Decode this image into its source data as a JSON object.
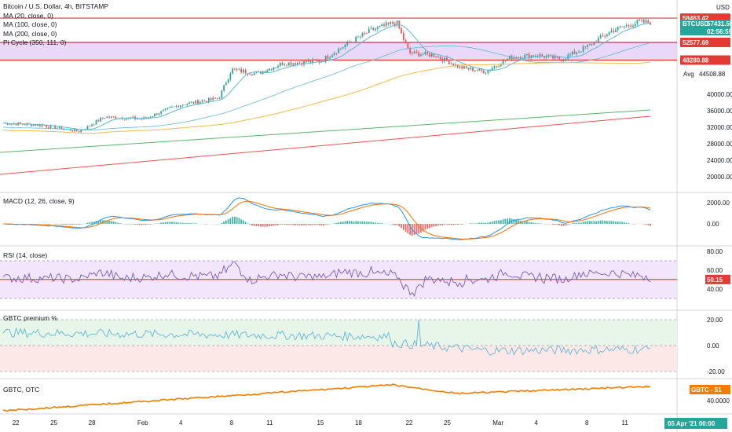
{
  "header": {
    "title": "Bitcoin / U.S. Dollar, 4h, BITSTAMP",
    "currency": "USD",
    "indicators": [
      "MA (20, close, 0)",
      "MA (100, close, 0)",
      "MA (200, close, 0)",
      "Pi Cycle (350, 111, 0)"
    ]
  },
  "price_pane": {
    "ticker_label": "BTCUSD",
    "last_price": "57431.59",
    "countdown": "02:56:59",
    "upper_level": "58463.42",
    "pi_upper": "52577.69",
    "lower_level": "48280.88",
    "avg_label": "Avg",
    "avg_value": "44508.88",
    "ticks": [
      "40000.00",
      "36000.00",
      "32000.00",
      "28000.00",
      "24000.00",
      "20000.00"
    ],
    "colors": {
      "up": "#26a69a",
      "down": "#ef5350",
      "ma20": "#5fb8d9",
      "ma100": "#f7b94a",
      "ma200": "#58b768",
      "pi_band": "#e0c8f5",
      "level": "#e53935",
      "pi_line": "#ef5350"
    }
  },
  "macd_pane": {
    "title": "MACD (12, 26, close, 9)",
    "ticks": [
      "2000.00",
      "0.00"
    ]
  },
  "rsi_pane": {
    "title": "RSI (14, close)",
    "ticks": [
      "80.00",
      "60.00",
      "40.00"
    ],
    "current": "50.15"
  },
  "gbtc_premium_pane": {
    "title": "GBTC premium %",
    "ticks": [
      "20.00",
      "0.00",
      "-20.00"
    ]
  },
  "gbtc_pane": {
    "title": "GBTC, OTC",
    "ticks": [
      "40.0000"
    ],
    "badge": "GBTC - 51"
  },
  "time_axis": {
    "labels": [
      "22",
      "25",
      "28",
      "Feb",
      "4",
      "8",
      "11",
      "15",
      "18",
      "22",
      "25",
      "Mar",
      "4",
      "8",
      "11"
    ],
    "current_date": "05 Apr '21   00:00"
  },
  "chart_data": {
    "type": "candlestick",
    "title": "Bitcoin / U.S. Dollar, 4h, BITSTAMP",
    "x_range": [
      "2021-01-21",
      "2021-03-13"
    ],
    "price_keypoints": [
      {
        "date": "2021-01-21",
        "price": 33000
      },
      {
        "date": "2021-01-24",
        "price": 32500
      },
      {
        "date": "2021-01-27",
        "price": 31000
      },
      {
        "date": "2021-01-29",
        "price": 34500
      },
      {
        "date": "2021-02-01",
        "price": 34000
      },
      {
        "date": "2021-02-04",
        "price": 37500
      },
      {
        "date": "2021-02-07",
        "price": 39000
      },
      {
        "date": "2021-02-08",
        "price": 46000
      },
      {
        "date": "2021-02-10",
        "price": 45000
      },
      {
        "date": "2021-02-12",
        "price": 47500
      },
      {
        "date": "2021-02-15",
        "price": 48000
      },
      {
        "date": "2021-02-17",
        "price": 52000
      },
      {
        "date": "2021-02-19",
        "price": 55500
      },
      {
        "date": "2021-02-21",
        "price": 57500
      },
      {
        "date": "2021-02-22",
        "price": 50000
      },
      {
        "date": "2021-02-24",
        "price": 49500
      },
      {
        "date": "2021-02-26",
        "price": 46500
      },
      {
        "date": "2021-02-28",
        "price": 45500
      },
      {
        "date": "2021-03-02",
        "price": 49000
      },
      {
        "date": "2021-03-04",
        "price": 49500
      },
      {
        "date": "2021-03-06",
        "price": 48500
      },
      {
        "date": "2021-03-08",
        "price": 51500
      },
      {
        "date": "2021-03-10",
        "price": 55500
      },
      {
        "date": "2021-03-12",
        "price": 57500
      },
      {
        "date": "2021-03-13",
        "price": 57431.59
      }
    ],
    "horizontal_levels": [
      58463.42,
      52577.69,
      48280.88
    ],
    "y_range": [
      18000,
      60000
    ]
  }
}
